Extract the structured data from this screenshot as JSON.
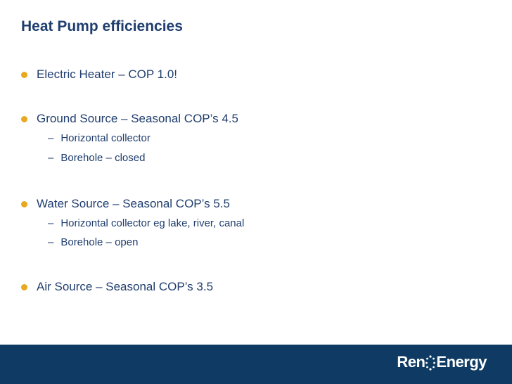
{
  "slide": {
    "title": "Heat Pump efficiencies"
  },
  "bullets": [
    {
      "text": "Electric Heater – COP 1.0!",
      "subitems": []
    },
    {
      "text": "Ground Source – Seasonal COP’s 4.5",
      "subitems": [
        "Horizontal collector",
        "Borehole – closed"
      ]
    },
    {
      "text": "Water Source – Seasonal COP’s 5.5",
      "subitems": [
        "Horizontal collector eg lake, river, canal",
        "Borehole – open"
      ]
    },
    {
      "text": "Air Source – Seasonal COP’s 3.5",
      "subitems": []
    }
  ],
  "sub_dash": "–",
  "footer": {
    "logo_left": "Ren",
    "logo_right": "Energy"
  },
  "colors": {
    "title": "#1f3d6e",
    "bullet": "#e8a820",
    "footer_bg": "#0e3a63"
  }
}
